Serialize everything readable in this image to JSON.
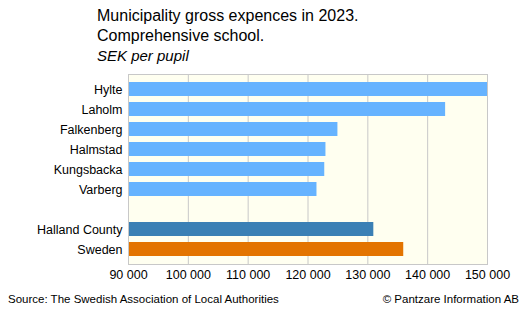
{
  "chart_data": {
    "type": "bar",
    "orientation": "horizontal",
    "title": "Municipality gross expences in 2023.\nComprehensive school.",
    "subtitle": "SEK per pupil",
    "source": "Source: The Swedish Association of Local Authorities",
    "copyright": "© Pantzare Information AB",
    "categories": [
      "Hylte",
      "Laholm",
      "Falkenberg",
      "Halmstad",
      "Kungsbacka",
      "Varberg",
      null,
      "Halland County",
      "Sweden"
    ],
    "values": [
      150000,
      143000,
      125000,
      123000,
      122800,
      121500,
      null,
      131000,
      136000
    ],
    "colors": [
      "#66b3ff",
      "#66b3ff",
      "#66b3ff",
      "#66b3ff",
      "#66b3ff",
      "#66b3ff",
      null,
      "#3b80b5",
      "#e37400"
    ],
    "xlim": [
      90000,
      150000
    ],
    "xticks": [
      {
        "value": 90000,
        "label": "90 000"
      },
      {
        "value": 100000,
        "label": "100 000"
      },
      {
        "value": 110000,
        "label": "110 000"
      },
      {
        "value": 120000,
        "label": "120 000"
      },
      {
        "value": 130000,
        "label": "130 000"
      },
      {
        "value": 140000,
        "label": "140 000"
      },
      {
        "value": 150000,
        "label": "150 000"
      }
    ],
    "grid": true,
    "data_labels": false
  }
}
